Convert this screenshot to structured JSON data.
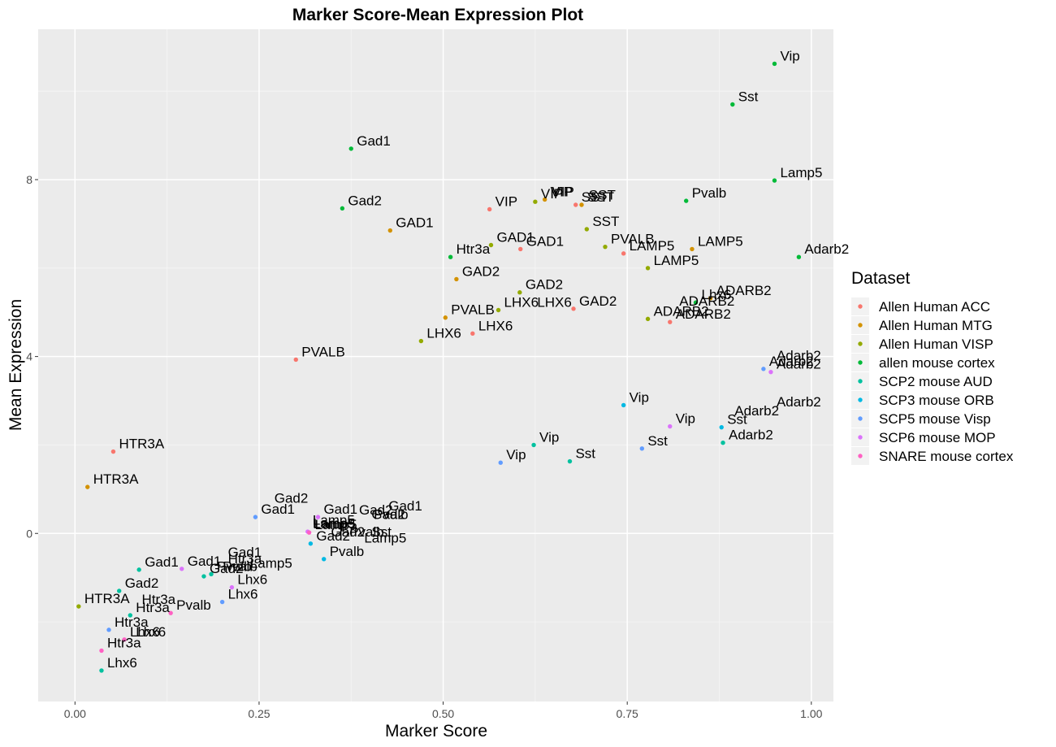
{
  "chart_data": {
    "type": "scatter",
    "title": "Marker Score-Mean Expression Plot",
    "xlabel": "Marker Score",
    "ylabel": "Mean Expression",
    "xlim": [
      -0.05,
      1.03
    ],
    "ylim": [
      -3.8,
      11.4
    ],
    "x_ticks": [
      "0.00",
      "0.25",
      "0.50",
      "0.75",
      "1.00"
    ],
    "x_tick_values": [
      0,
      0.25,
      0.5,
      0.75,
      1.0
    ],
    "y_ticks": [
      "0",
      "4",
      "8"
    ],
    "y_tick_values": [
      0,
      4,
      8
    ],
    "grid": true,
    "legend_title": "Dataset",
    "legend_position": "right",
    "series": [
      {
        "name": "Allen Human ACC",
        "color": "#F8766D",
        "points": [
          {
            "x": 0.052,
            "y": 1.85,
            "label": "HTR3A"
          },
          {
            "x": 0.3,
            "y": 3.93,
            "label": "PVALB"
          },
          {
            "x": 0.563,
            "y": 7.33,
            "label": "VIP"
          },
          {
            "x": 0.605,
            "y": 6.43,
            "label": "GAD1"
          },
          {
            "x": 0.54,
            "y": 4.52,
            "label": "LHX6"
          },
          {
            "x": 0.677,
            "y": 5.08,
            "label": "GAD2"
          },
          {
            "x": 0.68,
            "y": 7.43,
            "label": "SST"
          },
          {
            "x": 0.745,
            "y": 6.33,
            "label": "LAMP5"
          },
          {
            "x": 0.808,
            "y": 4.78,
            "label": "ADARB2"
          }
        ]
      },
      {
        "name": "Allen Human MTG",
        "color": "#D39200",
        "points": [
          {
            "x": 0.017,
            "y": 1.05,
            "label": "HTR3A"
          },
          {
            "x": 0.428,
            "y": 6.85,
            "label": "GAD1"
          },
          {
            "x": 0.518,
            "y": 5.75,
            "label": "GAD2"
          },
          {
            "x": 0.503,
            "y": 4.88,
            "label": "PVALB"
          },
          {
            "x": 0.638,
            "y": 7.55,
            "label": "VIP"
          },
          {
            "x": 0.688,
            "y": 7.43,
            "label": "SST"
          },
          {
            "x": 0.838,
            "y": 6.43,
            "label": "LAMP5"
          },
          {
            "x": 0.863,
            "y": 5.32,
            "label": "ADARB2"
          }
        ]
      },
      {
        "name": "Allen Human VISP",
        "color": "#93AA00",
        "points": [
          {
            "x": 0.005,
            "y": -1.65,
            "label": "HTR3A"
          },
          {
            "x": 0.47,
            "y": 4.35,
            "label": "LHX6"
          },
          {
            "x": 0.565,
            "y": 6.52,
            "label": "GAD1"
          },
          {
            "x": 0.575,
            "y": 5.05,
            "label": "LHX6"
          },
          {
            "x": 0.604,
            "y": 5.45,
            "label": "GAD2"
          },
          {
            "x": 0.625,
            "y": 7.5,
            "label": "VIP"
          },
          {
            "x": 0.695,
            "y": 6.88,
            "label": "SST"
          },
          {
            "x": 0.72,
            "y": 6.48,
            "label": "PVALB"
          },
          {
            "x": 0.778,
            "y": 6.0,
            "label": "LAMP5"
          },
          {
            "x": 0.778,
            "y": 4.85,
            "label": "ADARB2"
          }
        ]
      },
      {
        "name": "allen mouse cortex",
        "color": "#00BA38",
        "points": [
          {
            "x": 0.375,
            "y": 8.7,
            "label": "Gad1"
          },
          {
            "x": 0.363,
            "y": 7.35,
            "label": "Gad2"
          },
          {
            "x": 0.51,
            "y": 6.25,
            "label": "Htr3a"
          },
          {
            "x": 0.83,
            "y": 7.52,
            "label": "Pvalb"
          },
          {
            "x": 0.843,
            "y": 5.22,
            "label": "Lhx6"
          },
          {
            "x": 0.893,
            "y": 9.7,
            "label": "Sst"
          },
          {
            "x": 0.95,
            "y": 10.62,
            "label": "Vip"
          },
          {
            "x": 0.95,
            "y": 7.98,
            "label": "Lamp5"
          },
          {
            "x": 0.983,
            "y": 6.25,
            "label": "Adarb2"
          }
        ]
      },
      {
        "name": "SCP2 mouse AUD",
        "color": "#00C19F",
        "points": [
          {
            "x": 0.036,
            "y": -3.1,
            "label": "Lhx6"
          },
          {
            "x": 0.06,
            "y": -1.3,
            "label": "Gad2"
          },
          {
            "x": 0.075,
            "y": -1.85,
            "label": "Htr3a"
          },
          {
            "x": 0.087,
            "y": -0.82,
            "label": "Gad1"
          },
          {
            "x": 0.175,
            "y": -0.97,
            "label": "Gad2"
          },
          {
            "x": 0.185,
            "y": -0.92,
            "label": "Pvalb"
          },
          {
            "x": 0.623,
            "y": 2.0,
            "label": "Vip"
          },
          {
            "x": 0.672,
            "y": 1.63,
            "label": "Sst"
          },
          {
            "x": 0.88,
            "y": 2.05,
            "label": "Adarb2"
          }
        ]
      },
      {
        "name": "SCP3 mouse ORB",
        "color": "#00B9E3",
        "points": [
          {
            "x": 0.32,
            "y": -0.23,
            "label": "Gad2"
          },
          {
            "x": 0.338,
            "y": -0.58,
            "label": "Pvalb"
          },
          {
            "x": 0.745,
            "y": 2.9,
            "label": "Vip"
          },
          {
            "x": 0.878,
            "y": 2.4,
            "label": "Sst"
          }
        ]
      },
      {
        "name": "SCP5 mouse Visp",
        "color": "#619CFF",
        "points": [
          {
            "x": 0.046,
            "y": -2.18,
            "label": "Htr3a"
          },
          {
            "x": 0.2,
            "y": -1.55,
            "label": "Lhx6"
          },
          {
            "x": 0.245,
            "y": 0.37,
            "label": "Gad1"
          },
          {
            "x": 0.578,
            "y": 1.6,
            "label": "Vip"
          },
          {
            "x": 0.77,
            "y": 1.92,
            "label": "Sst"
          },
          {
            "x": 0.935,
            "y": 3.72,
            "label": "Adarb2"
          }
        ]
      },
      {
        "name": "SCP6 mouse MOP",
        "color": "#DB72FB",
        "points": [
          {
            "x": 0.145,
            "y": -0.8,
            "label": "Gad1"
          },
          {
            "x": 0.213,
            "y": -1.22,
            "label": "Lhx6"
          },
          {
            "x": 0.316,
            "y": 0.04,
            "label": "Lamp5"
          },
          {
            "x": 0.33,
            "y": 0.37,
            "label": "Gad1"
          },
          {
            "x": 0.808,
            "y": 2.42,
            "label": "Vip"
          },
          {
            "x": 0.945,
            "y": 3.65,
            "label": "Adarb2"
          }
        ]
      },
      {
        "name": "SNARE mouse cortex",
        "color": "#FF61C3",
        "points": [
          {
            "x": 0.036,
            "y": -2.65,
            "label": "Htr3a"
          },
          {
            "x": 0.067,
            "y": -2.4,
            "label": "Lhx6"
          },
          {
            "x": 0.13,
            "y": -1.8,
            "label": "Pvalb"
          },
          {
            "x": 0.318,
            "y": 0.02,
            "label": "Lamp5"
          }
        ]
      }
    ],
    "extra_labels": [
      {
        "x": 0.263,
        "y": 0.62,
        "label": "Gad2"
      },
      {
        "x": 0.2,
        "y": -0.6,
        "label": "Gad1"
      },
      {
        "x": 0.2,
        "y": -0.75,
        "label": "Htr3a"
      },
      {
        "x": 0.23,
        "y": -0.85,
        "label": "Lamp5"
      },
      {
        "x": 0.193,
        "y": -0.92,
        "label": "Pvalb"
      },
      {
        "x": 0.083,
        "y": -1.67,
        "label": "Htr3a"
      },
      {
        "x": 0.075,
        "y": -2.4,
        "label": "Lhx6"
      },
      {
        "x": 0.315,
        "y": 0.12,
        "label": "Lamp5"
      },
      {
        "x": 0.315,
        "y": 0.05,
        "label": "Lamp5"
      },
      {
        "x": 0.378,
        "y": 0.35,
        "label": "Gad2"
      },
      {
        "x": 0.395,
        "y": 0.25,
        "label": "Gad2"
      },
      {
        "x": 0.418,
        "y": 0.45,
        "label": "Gad1"
      },
      {
        "x": 0.398,
        "y": 0.25,
        "label": "Pvalb"
      },
      {
        "x": 0.34,
        "y": -0.14,
        "label": "Gad2"
      },
      {
        "x": 0.365,
        "y": -0.14,
        "label": "Pvalb"
      },
      {
        "x": 0.395,
        "y": -0.14,
        "label": "Sst"
      },
      {
        "x": 0.385,
        "y": -0.28,
        "label": "Lamp5"
      },
      {
        "x": 0.64,
        "y": 7.55,
        "label": "VIP"
      },
      {
        "x": 0.69,
        "y": 7.48,
        "label": "SST"
      },
      {
        "x": 0.62,
        "y": 5.05,
        "label": "LHX6"
      },
      {
        "x": 0.945,
        "y": 3.85,
        "label": "Adarb2"
      },
      {
        "x": 0.945,
        "y": 2.8,
        "label": "Adarb2"
      },
      {
        "x": 0.888,
        "y": 2.6,
        "label": "Adarb2"
      },
      {
        "x": 0.813,
        "y": 5.08,
        "label": "ADARB2"
      }
    ]
  }
}
